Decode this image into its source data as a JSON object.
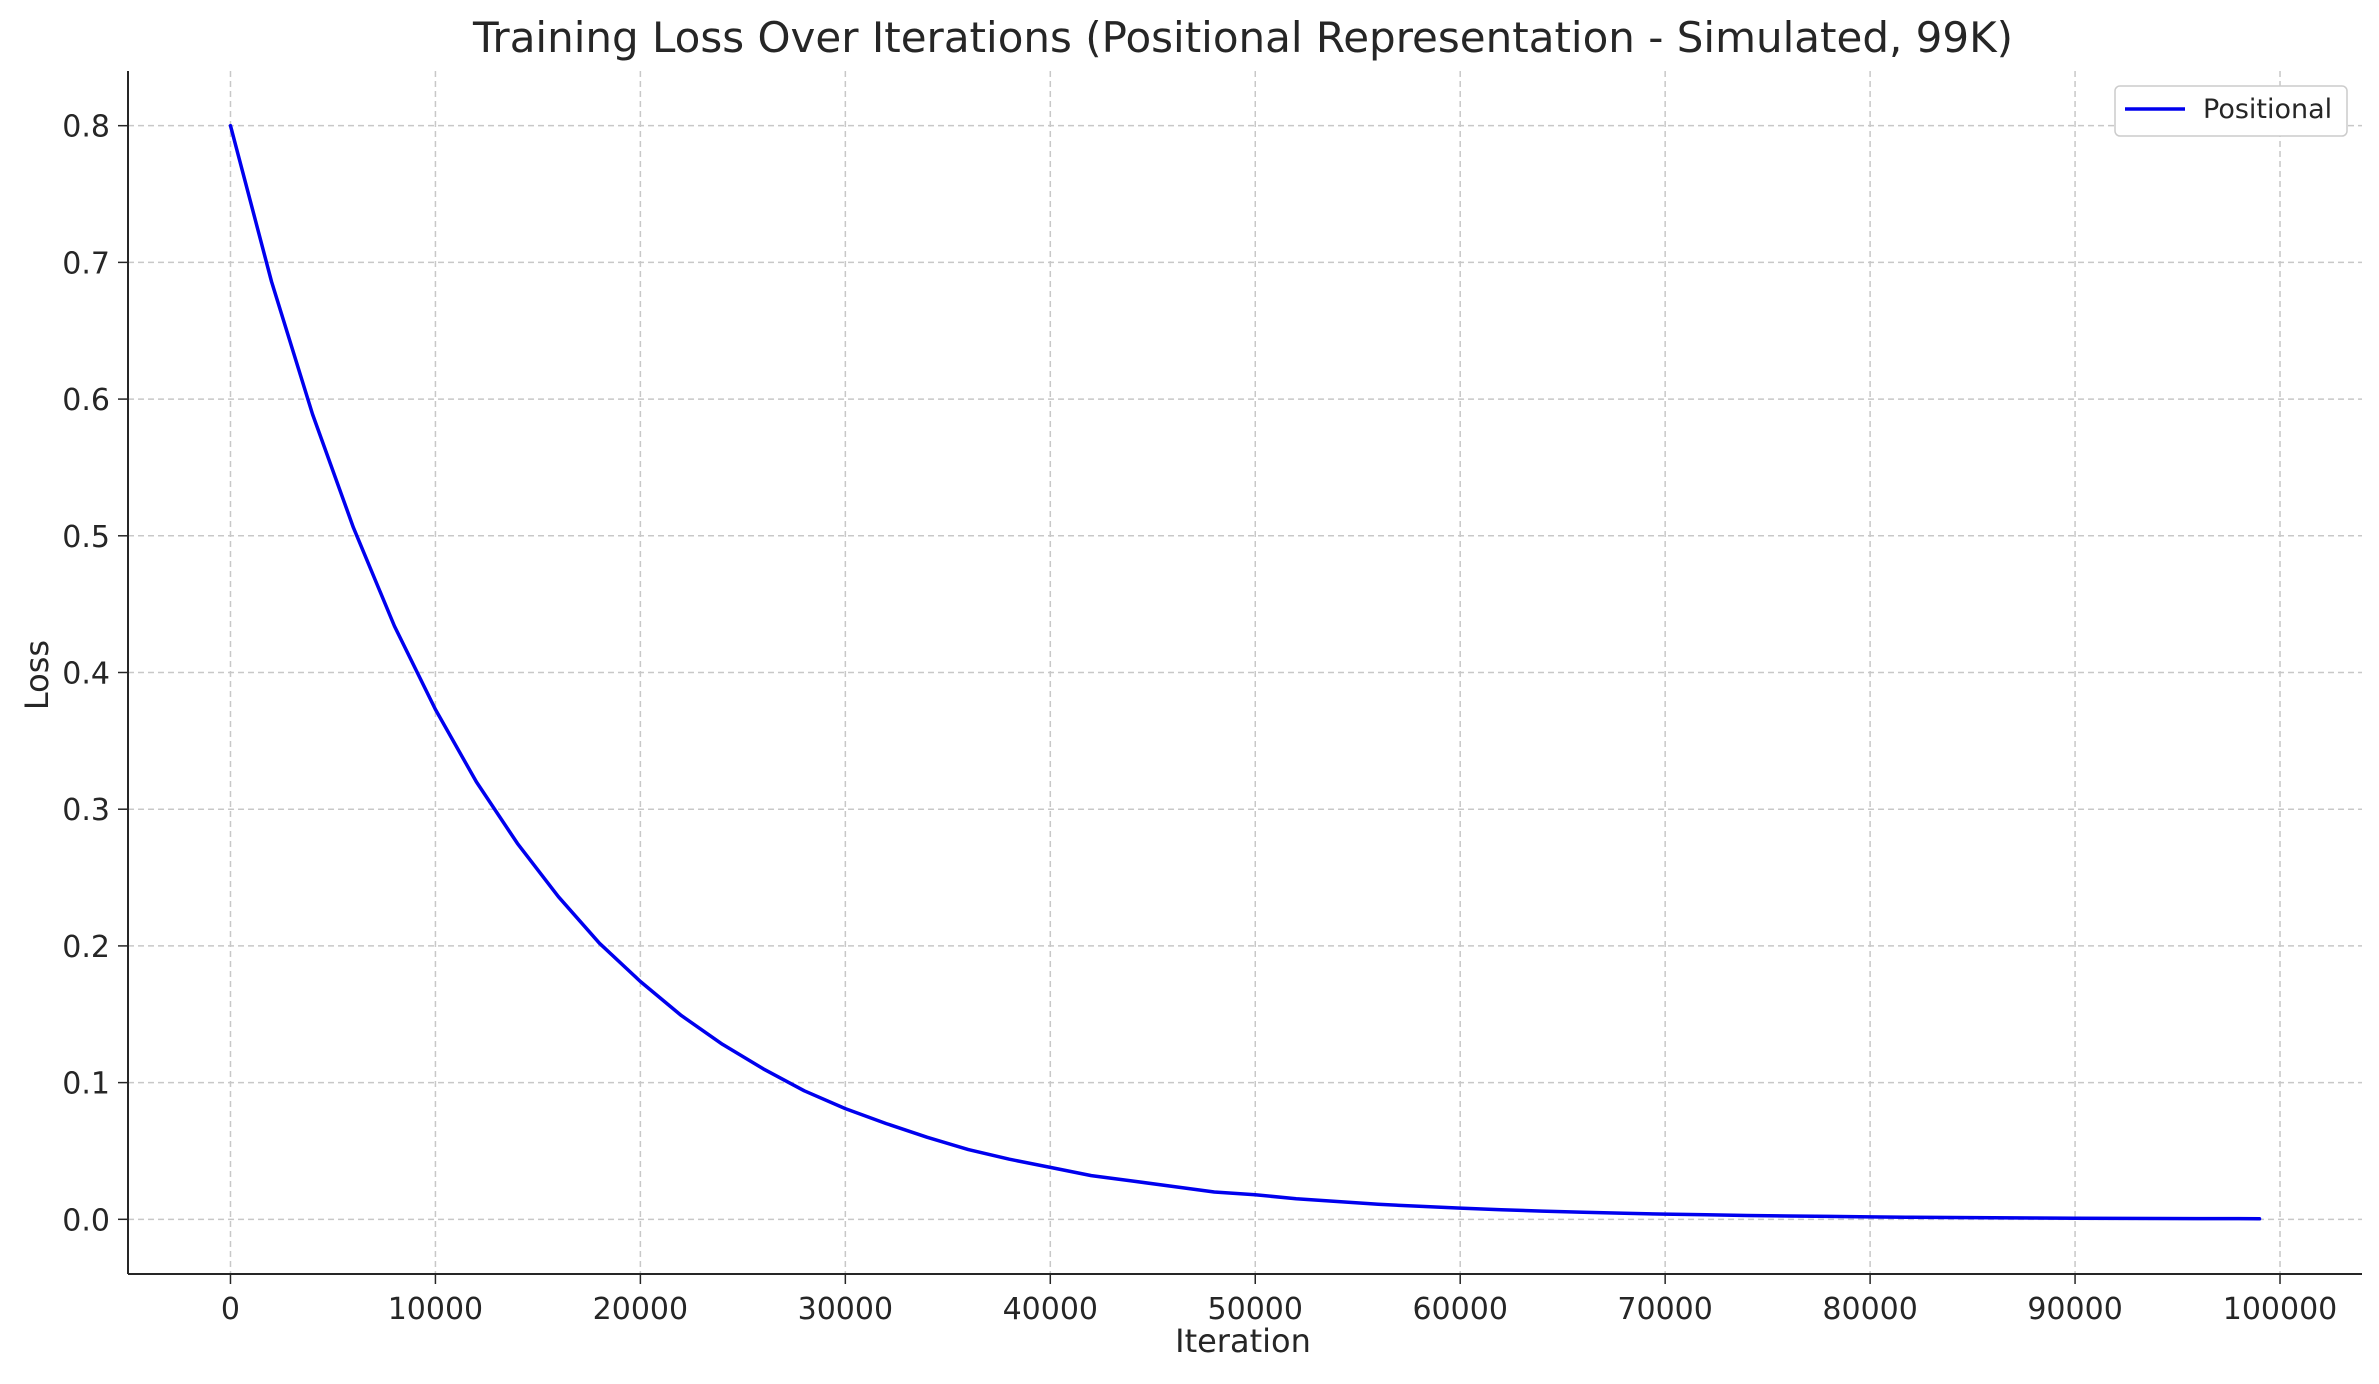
{
  "chart_data": {
    "type": "line",
    "title": "Training Loss Over Iterations (Positional Representation - Simulated, 99K)",
    "xlabel": "Iteration",
    "ylabel": "Loss",
    "xlim": [
      -5000,
      104000
    ],
    "ylim": [
      -0.04,
      0.84
    ],
    "x_ticks": [
      0,
      10000,
      20000,
      30000,
      40000,
      50000,
      60000,
      70000,
      80000,
      90000,
      100000
    ],
    "x_tick_labels": [
      "0",
      "10000",
      "20000",
      "30000",
      "40000",
      "50000",
      "60000",
      "70000",
      "80000",
      "90000",
      "100000"
    ],
    "y_ticks": [
      0.0,
      0.1,
      0.2,
      0.3,
      0.4,
      0.5,
      0.6,
      0.7,
      0.8
    ],
    "y_tick_labels": [
      "0.0",
      "0.1",
      "0.2",
      "0.3",
      "0.4",
      "0.5",
      "0.6",
      "0.7",
      "0.8"
    ],
    "grid": true,
    "grid_style": "dashed",
    "legend_position": "top-right",
    "series": [
      {
        "name": "Positional",
        "color": "#0000ee",
        "x": [
          0,
          2000,
          4000,
          6000,
          8000,
          10000,
          12000,
          14000,
          16000,
          18000,
          20000,
          22000,
          24000,
          26000,
          28000,
          30000,
          32000,
          34000,
          36000,
          38000,
          40000,
          42000,
          44000,
          46000,
          48000,
          50000,
          52000,
          54000,
          56000,
          58000,
          60000,
          62000,
          64000,
          66000,
          68000,
          70000,
          72000,
          74000,
          76000,
          78000,
          80000,
          82000,
          84000,
          86000,
          88000,
          90000,
          92000,
          94000,
          96000,
          98000,
          99000
        ],
        "y": [
          0.8,
          0.686,
          0.589,
          0.506,
          0.434,
          0.373,
          0.32,
          0.275,
          0.236,
          0.202,
          0.174,
          0.149,
          0.128,
          0.11,
          0.094,
          0.081,
          0.07,
          0.06,
          0.051,
          0.044,
          0.038,
          0.032,
          0.028,
          0.024,
          0.02,
          0.018,
          0.015,
          0.013,
          0.011,
          0.0095,
          0.0082,
          0.007,
          0.006,
          0.0052,
          0.0044,
          0.0038,
          0.0033,
          0.0028,
          0.0024,
          0.0021,
          0.0018,
          0.0015,
          0.0013,
          0.0011,
          0.001,
          0.0008,
          0.0007,
          0.0006,
          0.0005,
          0.0005,
          0.0004
        ]
      }
    ]
  }
}
